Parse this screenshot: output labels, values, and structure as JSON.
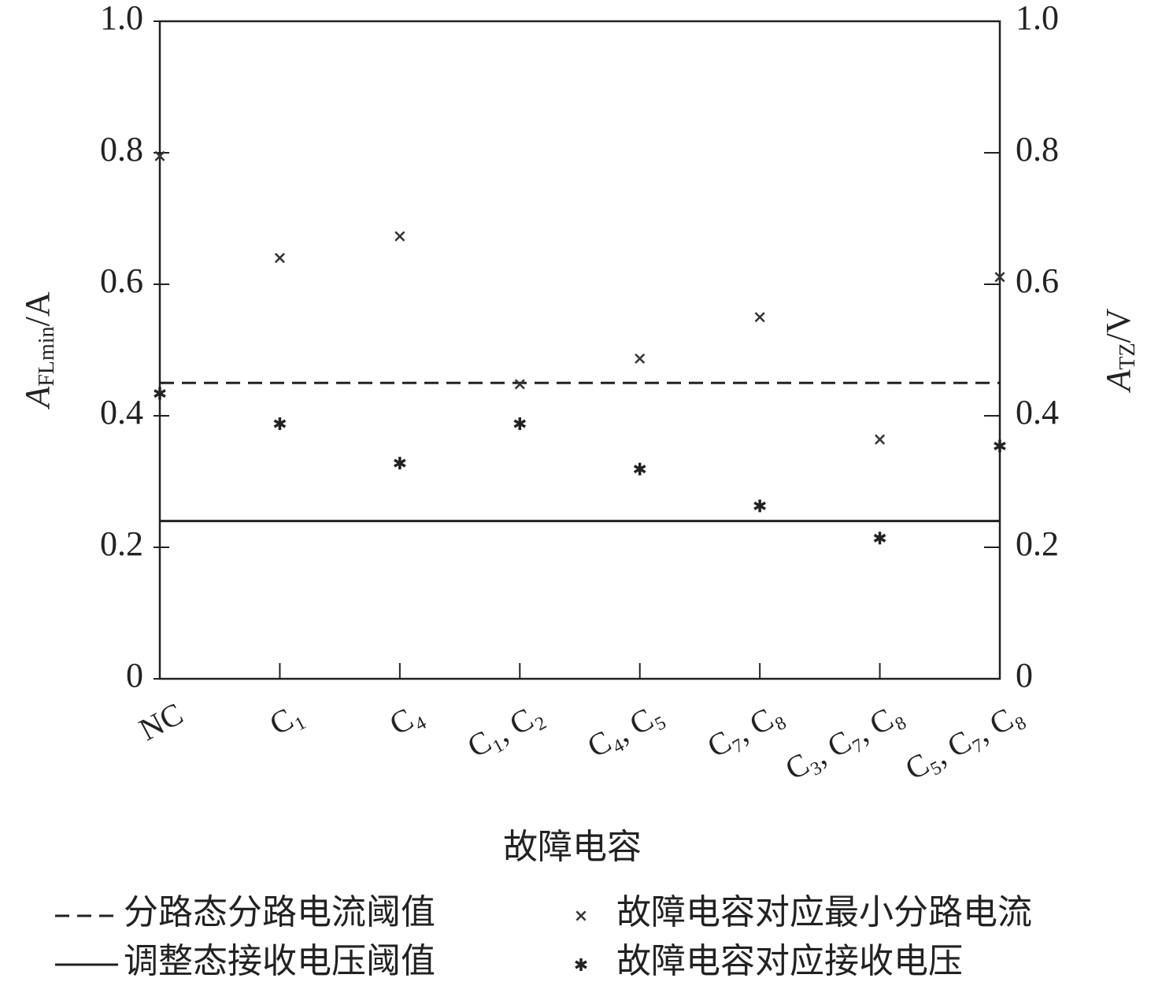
{
  "chart_data": {
    "type": "scatter",
    "categories": [
      "NC",
      "C₁",
      "C₄",
      "C₁, C₂",
      "C₄, C₅",
      "C₇, C₈",
      "C₃, C₇, C₈",
      "C₅, C₇, C₈"
    ],
    "xlabel": "故障电容",
    "ylabel": [
      "A",
      "FLmin",
      "/A"
    ],
    "y2label": [
      "A",
      "TZ",
      "/V"
    ],
    "ylim": [
      0,
      1.0
    ],
    "yticks": [
      0,
      0.2,
      0.4,
      0.6,
      0.8,
      {
        "value": 1.0,
        "label": "1.0"
      }
    ],
    "y2lim": [
      0,
      1.0
    ],
    "y2ticks": [
      0,
      0.2,
      0.4,
      0.6,
      0.8,
      {
        "value": 1.0,
        "label": "1.0"
      }
    ],
    "hlines": [
      {
        "name": "分路态分路电流阈值",
        "value": 0.45,
        "style": "dashed",
        "color": "#222222"
      },
      {
        "name": "调整态接收电压阈值",
        "value": 0.24,
        "style": "solid",
        "color": "#222222"
      }
    ],
    "series": [
      {
        "name": "故障电容对应最小分路电流",
        "marker": "x",
        "color": "#333333",
        "values": [
          0.795,
          0.64,
          0.673,
          0.448,
          0.487,
          0.55,
          0.364,
          0.611
        ]
      },
      {
        "name": "故障电容对应接收电压",
        "marker": "asterisk",
        "color": "#222222",
        "axis": "y2",
        "values": [
          0.434,
          0.388,
          0.328,
          0.388,
          0.319,
          0.263,
          0.214,
          0.354
        ]
      }
    ]
  }
}
